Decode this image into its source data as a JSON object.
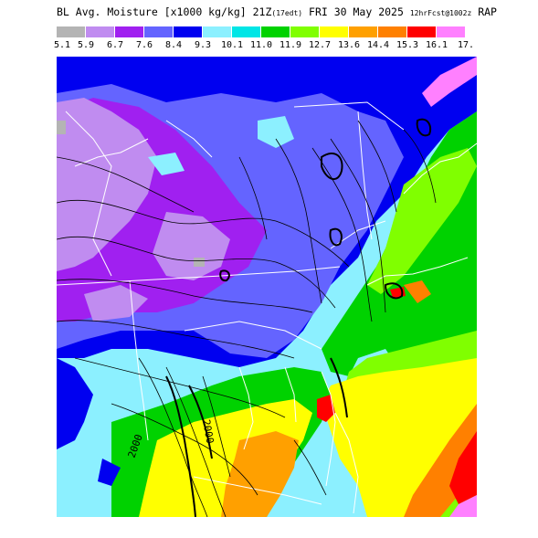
{
  "title": {
    "main": "BL Avg. Moisture [x1000 kg/kg] 21Z",
    "init_small": "(17edt)",
    "date": " FRI 30 May 2025 ",
    "fcst_small": "12hrFcst@1002z",
    "model": " RAP"
  },
  "legend": {
    "colors": [
      "#b4b4b4",
      "#c08cf0",
      "#a020f0",
      "#6464ff",
      "#0000f0",
      "#8cf0ff",
      "#00e6e6",
      "#00d200",
      "#80ff00",
      "#ffff00",
      "#ffa000",
      "#ff8000",
      "#ff0000",
      "#ff80ff"
    ],
    "labels": [
      "5.1",
      "5.9",
      "6.7",
      "7.6",
      "8.4",
      "9.3",
      "10.1",
      "11.0",
      "11.9",
      "12.7",
      "13.6",
      "14.4",
      "15.3",
      "16.1",
      "17."
    ]
  },
  "map": {
    "field_color_scale": [
      "#b4b4b4",
      "#c08cf0",
      "#a020f0",
      "#6464ff",
      "#0000f0",
      "#8cf0ff",
      "#00e6e6",
      "#00d200",
      "#80ff00",
      "#ffff00",
      "#ffa000",
      "#ff8000",
      "#ff0000",
      "#ff80ff"
    ],
    "contour_labels": [
      "2000",
      "2000"
    ]
  }
}
